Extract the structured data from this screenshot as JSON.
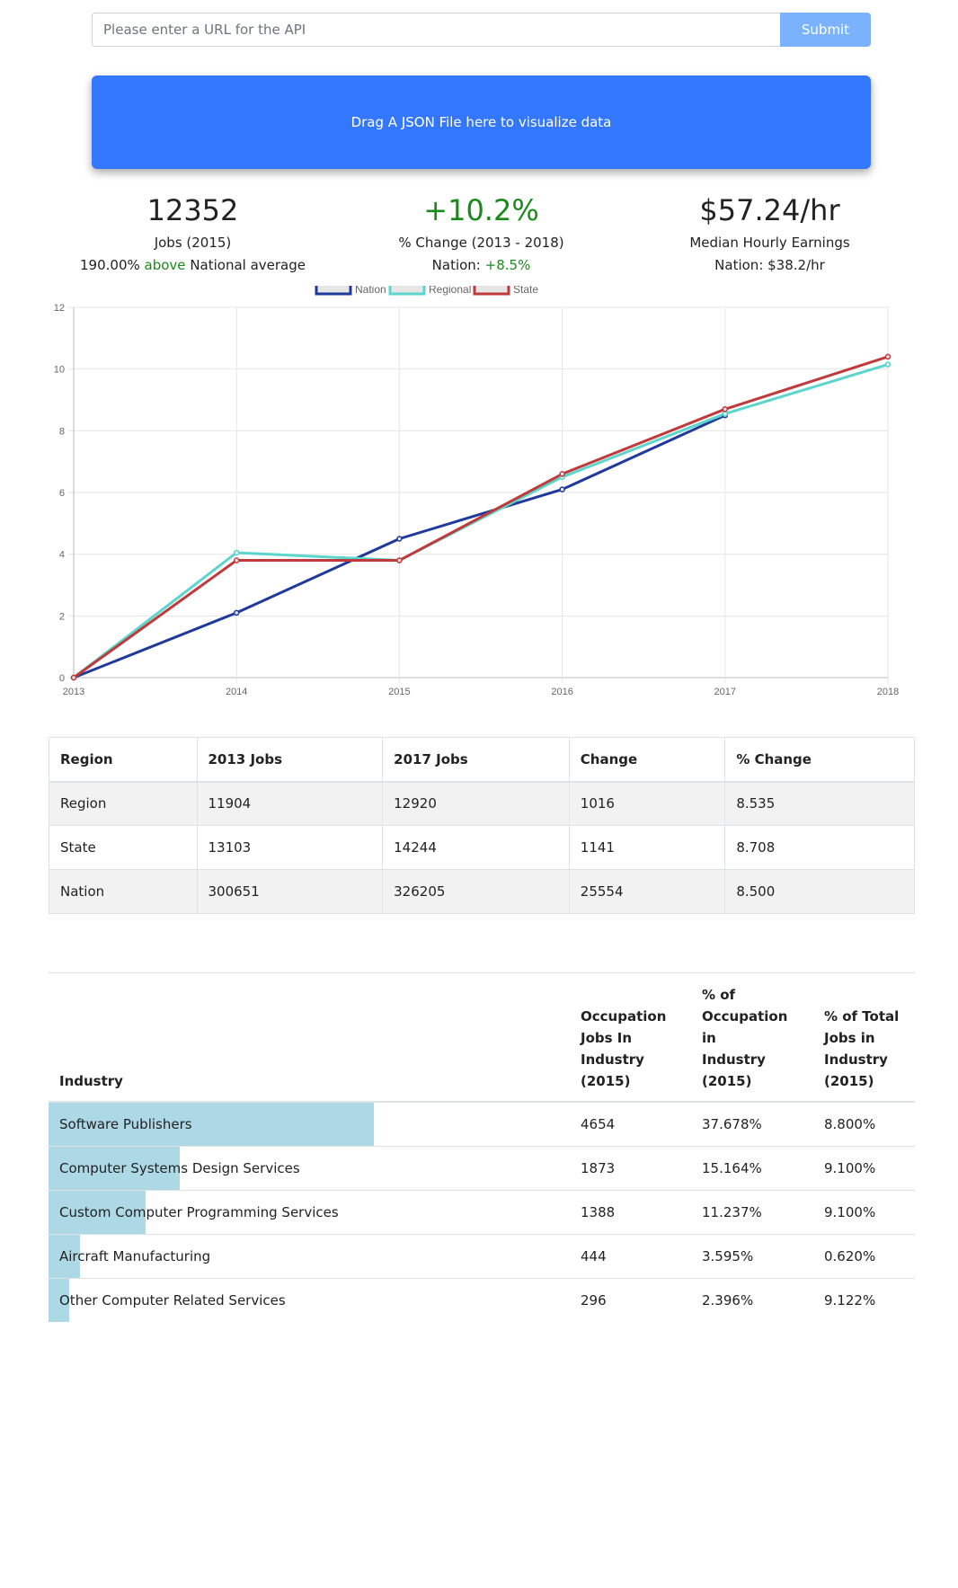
{
  "url_bar": {
    "placeholder": "Please enter a URL for the API",
    "submit_label": "Submit"
  },
  "drop_zone": {
    "label": "Drag A JSON File here to visualize data"
  },
  "stats": {
    "jobs": {
      "value": "12352",
      "label": "Jobs (2015)",
      "sub_value": "190.00%",
      "sub_word": "above",
      "sub_rest": "National average"
    },
    "change": {
      "value": "+10.2%",
      "label": "% Change (2013 - 2018)",
      "sub_prefix": "Nation:",
      "sub_value": "+8.5%"
    },
    "earnings": {
      "value": "$57.24/hr",
      "label": "Median Hourly Earnings",
      "sub": "Nation: $38.2/hr"
    }
  },
  "chart_data": {
    "type": "line",
    "x": [
      "2013",
      "2014",
      "2015",
      "2016",
      "2017",
      "2018"
    ],
    "ylim": [
      0,
      12
    ],
    "yticks": [
      "0",
      "2",
      "4",
      "6",
      "8",
      "10",
      "12"
    ],
    "grid": true,
    "legend": "top-center",
    "series": [
      {
        "name": "Nation",
        "color": "#1f3a9a",
        "values": [
          0,
          2.1,
          4.5,
          6.1,
          8.5,
          null
        ]
      },
      {
        "name": "Regional",
        "color": "#5cd6cc",
        "values": [
          0,
          4.05,
          3.8,
          6.5,
          8.55,
          10.15
        ]
      },
      {
        "name": "State",
        "color": "#c0393b",
        "values": [
          0,
          3.8,
          3.8,
          6.6,
          8.7,
          10.4
        ]
      }
    ]
  },
  "jobs_table": {
    "headers": [
      "Region",
      "2013 Jobs",
      "2017 Jobs",
      "Change",
      "% Change"
    ],
    "rows": [
      [
        "Region",
        "11904",
        "12920",
        "1016",
        "8.535"
      ],
      [
        "State",
        "13103",
        "14244",
        "1141",
        "8.708"
      ],
      [
        "Nation",
        "300651",
        "326205",
        "25554",
        "8.500"
      ]
    ]
  },
  "industry_table": {
    "headers": {
      "industry": "Industry",
      "jobs": [
        "Occupation",
        "Jobs In",
        "Industry",
        "(2015)"
      ],
      "pct_occ": [
        "% of",
        "Occupation in",
        "Industry",
        "(2015)"
      ],
      "pct_total": [
        "% of Total",
        "Jobs in",
        "Industry",
        "(2015)"
      ]
    },
    "bar_color": "#add8e6",
    "rows": [
      {
        "name": "Software Publishers",
        "jobs": "4654",
        "pct_occ": "37.678%",
        "pct_total": "8.800%",
        "bar_share": 0.678
      },
      {
        "name": "Computer Systems Design Services",
        "jobs": "1873",
        "pct_occ": "15.164%",
        "pct_total": "9.100%",
        "bar_share": 0.273
      },
      {
        "name": "Custom Computer Programming Services",
        "jobs": "1388",
        "pct_occ": "11.237%",
        "pct_total": "9.100%",
        "bar_share": 0.202
      },
      {
        "name": "Aircraft Manufacturing",
        "jobs": "444",
        "pct_occ": "3.595%",
        "pct_total": "0.620%",
        "bar_share": 0.065
      },
      {
        "name": "Other Computer Related Services",
        "jobs": "296",
        "pct_occ": "2.396%",
        "pct_total": "9.122%",
        "bar_share": 0.043
      }
    ]
  }
}
